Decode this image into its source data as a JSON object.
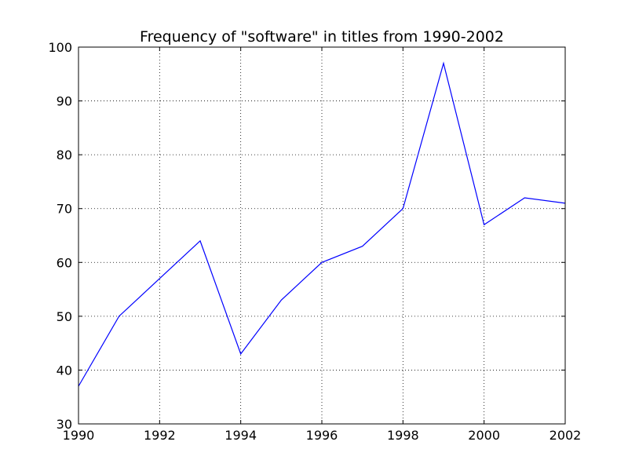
{
  "chart_data": {
    "type": "line",
    "title": "Frequency of \"software\" in titles from 1990-2002",
    "xlabel": "",
    "ylabel": "",
    "x": [
      1990,
      1991,
      1992,
      1993,
      1994,
      1995,
      1996,
      1997,
      1998,
      1999,
      2000,
      2001,
      2002
    ],
    "series": [
      {
        "values": [
          37,
          50,
          57,
          64,
          43,
          53,
          60,
          63,
          70,
          97,
          67,
          72,
          71
        ],
        "color": "#0000ff"
      }
    ],
    "xlim": [
      1990,
      2002
    ],
    "ylim": [
      30,
      100
    ],
    "xticks": [
      1990,
      1992,
      1994,
      1996,
      1998,
      2000,
      2002
    ],
    "xtick_labels": [
      "1990",
      "1992",
      "1994",
      "1996",
      "1998",
      "2000",
      "2002"
    ],
    "yticks": [
      30,
      40,
      50,
      60,
      70,
      80,
      90,
      100
    ],
    "ytick_labels": [
      "30",
      "40",
      "50",
      "60",
      "70",
      "80",
      "90",
      "100"
    ],
    "grid": true,
    "legend": false
  }
}
